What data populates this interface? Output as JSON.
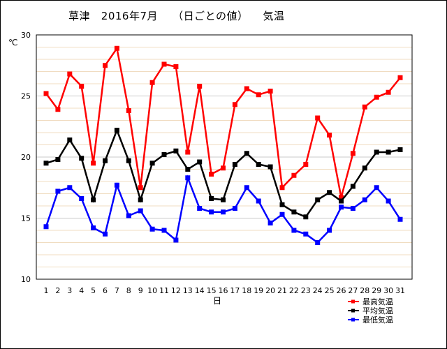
{
  "title_line": "草津   2016年7月    （日ごとの値）    気温",
  "chart_data": {
    "type": "line",
    "title": "草津   2016年7月    （日ごとの値）    気温",
    "xlabel": "日",
    "ylabel": "℃",
    "ylim": [
      10,
      30
    ],
    "yticks": [
      10,
      15,
      20,
      25,
      30
    ],
    "grid": true,
    "legend_position": "bottom-right",
    "x": [
      1,
      2,
      3,
      4,
      5,
      6,
      7,
      8,
      9,
      10,
      11,
      12,
      13,
      14,
      15,
      16,
      17,
      18,
      19,
      20,
      21,
      22,
      23,
      24,
      25,
      26,
      27,
      28,
      29,
      30,
      31
    ],
    "series": [
      {
        "name": "最高気温",
        "color": "#ff0000",
        "values": [
          25.2,
          23.9,
          26.8,
          25.8,
          19.5,
          27.5,
          28.9,
          23.8,
          17.5,
          26.1,
          27.6,
          27.4,
          20.4,
          25.8,
          18.6,
          19.1,
          24.3,
          25.6,
          25.1,
          25.4,
          17.5,
          18.5,
          19.4,
          23.2,
          21.8,
          16.7,
          20.3,
          24.1,
          24.9,
          25.3,
          26.5
        ]
      },
      {
        "name": "平均気温",
        "color": "#000000",
        "values": [
          19.5,
          19.8,
          21.4,
          19.9,
          16.5,
          19.7,
          22.2,
          19.7,
          16.5,
          19.5,
          20.2,
          20.5,
          19.0,
          19.6,
          16.6,
          16.5,
          19.4,
          20.3,
          19.4,
          19.2,
          16.1,
          15.5,
          15.1,
          16.5,
          17.1,
          16.4,
          17.6,
          19.1,
          20.4,
          20.4,
          20.6
        ]
      },
      {
        "name": "最低気温",
        "color": "#0000ff",
        "values": [
          14.3,
          17.2,
          17.5,
          16.6,
          14.2,
          13.7,
          17.7,
          15.2,
          15.6,
          14.1,
          14.0,
          13.2,
          18.3,
          15.8,
          15.5,
          15.5,
          15.8,
          17.5,
          16.4,
          14.6,
          15.3,
          14.0,
          13.7,
          13.0,
          14.0,
          15.9,
          15.8,
          16.5,
          17.5,
          16.4,
          14.9
        ]
      }
    ]
  }
}
